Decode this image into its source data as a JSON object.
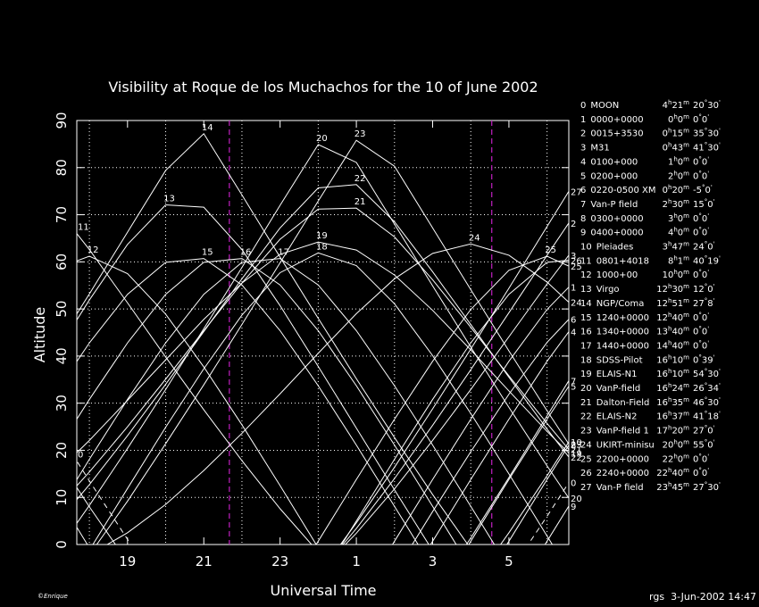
{
  "chart_data": {
    "type": "line",
    "title": "Visibility at Roque de los Muchachos for the 10 of June 2002",
    "x_label": "Universal Time",
    "y_label": "Altitude",
    "credit": "©Enrique",
    "stamp": "rgs  3-Jun-2002 14:47",
    "xlim": [
      17.67,
      30.57
    ],
    "ylim": [
      0,
      90
    ],
    "xticks": [
      19,
      21,
      23,
      {
        "value": 25,
        "label": "1"
      },
      {
        "value": 27,
        "label": "3"
      },
      {
        "value": 29,
        "label": "5"
      }
    ],
    "xgrid": [
      18,
      20,
      22,
      24,
      26,
      28,
      30
    ],
    "yticks": [
      0,
      10,
      20,
      30,
      40,
      50,
      60,
      70,
      80,
      90
    ],
    "grid": true,
    "background": "#000000",
    "line_color": "#ffffff",
    "markers": [
      21.67,
      28.55
    ],
    "marker_color": "#c020c0",
    "x": [
      17,
      18,
      19,
      20,
      21,
      22,
      23,
      24,
      25,
      26,
      27,
      28,
      29,
      30,
      31
    ],
    "series": [
      {
        "id": "0",
        "name": "MOON",
        "ra": [
          "4",
          "h",
          "21",
          "m"
        ],
        "dec": [
          "20",
          "°",
          "30",
          "'"
        ],
        "dashed": true,
        "values": [
          26.3,
          13.5,
          1.1,
          -10.7,
          null,
          null,
          null,
          null,
          null,
          null,
          null,
          null,
          -6.1,
          6.0,
          18.5
        ]
      },
      {
        "id": "1",
        "name": "0000+0000",
        "ra": [
          "0",
          "h",
          "0",
          "m"
        ],
        "dec": [
          "0",
          "°",
          "0",
          "'"
        ],
        "values": [
          null,
          null,
          null,
          null,
          null,
          null,
          null,
          null,
          -12.5,
          0.7,
          13.8,
          26.6,
          38.9,
          49.9,
          58.2
        ]
      },
      {
        "id": "2",
        "name": "0015+3530",
        "ra": [
          "0",
          "h",
          "15",
          "m"
        ],
        "dec": [
          "35",
          "°",
          "30",
          "'"
        ],
        "values": [
          null,
          null,
          null,
          null,
          null,
          null,
          null,
          -6.3,
          3.4,
          14.0,
          25.3,
          37.1,
          49.2,
          61.4,
          73.4
        ]
      },
      {
        "id": "3",
        "name": "M31",
        "ra": [
          "0",
          "h",
          "43",
          "m"
        ],
        "dec": [
          "41",
          "°",
          "30",
          "'"
        ],
        "values": [
          null,
          null,
          null,
          null,
          null,
          null,
          null,
          -5.9,
          2.4,
          11.8,
          22.1,
          32.9,
          44.1,
          55.3,
          66.0
        ]
      },
      {
        "id": "4",
        "name": "0100+000",
        "ra": [
          "1",
          "h",
          "0",
          "m"
        ],
        "dec": [
          "0",
          "°",
          "0",
          "'"
        ],
        "values": [
          null,
          null,
          null,
          null,
          null,
          null,
          null,
          null,
          null,
          -12.5,
          0.7,
          13.8,
          26.6,
          38.9,
          49.9
        ]
      },
      {
        "id": "5",
        "name": "0200+000",
        "ra": [
          "2",
          "h",
          "0",
          "m"
        ],
        "dec": [
          "0",
          "°",
          "0",
          "'"
        ],
        "values": [
          null,
          null,
          null,
          null,
          null,
          null,
          null,
          null,
          null,
          null,
          -12.5,
          0.7,
          13.8,
          26.6,
          38.9
        ]
      },
      {
        "id": "6",
        "name": "0220-0500 XM",
        "ra": [
          "0",
          "h",
          "20",
          "m"
        ],
        "dec": [
          "-5",
          "°",
          "0",
          "'"
        ],
        "values": [
          null,
          null,
          null,
          null,
          null,
          null,
          null,
          null,
          null,
          -6.1,
          7.0,
          19.7,
          31.9,
          42.9,
          51.5
        ]
      },
      {
        "id": "7",
        "name": "Van-P field",
        "ra": [
          "2",
          "h",
          "30",
          "m"
        ],
        "dec": [
          "15",
          "°",
          "0",
          "'"
        ],
        "values": [
          null,
          null,
          null,
          null,
          null,
          null,
          null,
          null,
          null,
          null,
          -10.9,
          1.4,
          14.2,
          27.3,
          40.4
        ]
      },
      {
        "id": "8",
        "name": "0300+0000",
        "ra": [
          "3",
          "h",
          "0",
          "m"
        ],
        "dec": [
          "0",
          "°",
          "0",
          "'"
        ],
        "values": [
          null,
          null,
          null,
          null,
          null,
          null,
          null,
          null,
          null,
          null,
          null,
          -12.5,
          0.7,
          13.8,
          26.6
        ]
      },
      {
        "id": "9",
        "name": "0400+0000",
        "ra": [
          "4",
          "h",
          "0",
          "m"
        ],
        "dec": [
          "0",
          "°",
          "0",
          "'"
        ],
        "values": [
          12.5,
          -0.7,
          null,
          null,
          null,
          null,
          null,
          null,
          null,
          null,
          null,
          null,
          -12.5,
          0.7,
          13.8
        ]
      },
      {
        "id": "10",
        "name": "Pleiades",
        "ra": [
          "3",
          "h",
          "47",
          "m"
        ],
        "dec": [
          "24",
          "°",
          "0",
          "'"
        ],
        "values": [
          20.4,
          8.0,
          -3.7,
          null,
          null,
          null,
          null,
          null,
          null,
          null,
          null,
          -8.9,
          2.5,
          14.6,
          27.2
        ]
      },
      {
        "id": "11",
        "name": "0801+4018",
        "ra": [
          "8",
          "h",
          "1",
          "m"
        ],
        "dec": [
          "40",
          "°",
          "19",
          "'"
        ],
        "values": [
          72.9,
          62.6,
          51.3,
          39.8,
          28.6,
          17.8,
          7.6,
          -1.6,
          null,
          null,
          null,
          null,
          null,
          null,
          null
        ]
      },
      {
        "id": "12",
        "name": "1000+00",
        "ra": [
          "10",
          "h",
          "0",
          "m"
        ],
        "dec": [
          "0",
          "°",
          "0",
          "'"
        ],
        "values": [
          58.2,
          61.2,
          57.5,
          48.9,
          37.7,
          25.4,
          12.5,
          -0.7,
          null,
          null,
          null,
          null,
          null,
          null,
          null
        ]
      },
      {
        "id": "13",
        "name": "Virgo",
        "ra": [
          "12",
          "h",
          "30",
          "m"
        ],
        "dec": [
          "12",
          "°",
          "0",
          "'"
        ],
        "values": [
          39.1,
          51.9,
          63.7,
          72.1,
          71.6,
          62.6,
          50.7,
          37.8,
          24.7,
          11.6,
          -1.3,
          null,
          null,
          null,
          null
        ]
      },
      {
        "id": "14",
        "name": "NGP/Coma",
        "ra": [
          "12",
          "h",
          "51",
          "m"
        ],
        "dec": [
          "27",
          "°",
          "8",
          "'"
        ],
        "values": [
          40.3,
          53.2,
          66.3,
          79.4,
          87.2,
          74.2,
          61.0,
          48.0,
          35.2,
          22.7,
          10.6,
          -0.9,
          null,
          null,
          null
        ]
      },
      {
        "id": "15",
        "name": "1240+0000",
        "ra": [
          "12",
          "h",
          "40",
          "m"
        ],
        "dec": [
          "0",
          "°",
          "0",
          "'"
        ],
        "values": [
          30.8,
          42.8,
          53.1,
          59.9,
          60.7,
          55.1,
          45.4,
          33.7,
          21.1,
          8.1,
          -5.0,
          null,
          null,
          null,
          null
        ]
      },
      {
        "id": "16",
        "name": "1340+0000",
        "ra": [
          "13",
          "h",
          "40",
          "m"
        ],
        "dec": [
          "0",
          "°",
          "0",
          "'"
        ],
        "values": [
          18.1,
          30.8,
          42.8,
          53.1,
          59.9,
          60.7,
          55.1,
          45.4,
          33.7,
          21.1,
          8.1,
          -5.0,
          null,
          null,
          null
        ]
      },
      {
        "id": "17",
        "name": "1440+0000",
        "ra": [
          "14",
          "h",
          "40",
          "m"
        ],
        "dec": [
          "0",
          "°",
          "0",
          "'"
        ],
        "values": [
          5.0,
          18.1,
          30.8,
          42.8,
          53.1,
          59.9,
          60.7,
          55.1,
          45.4,
          33.7,
          21.1,
          8.1,
          -5.0,
          null,
          null
        ]
      },
      {
        "id": "18",
        "name": "SDSS-Pilot",
        "ra": [
          "16",
          "h",
          "10",
          "m"
        ],
        "dec": [
          "0",
          "°",
          "39",
          "'"
        ],
        "values": [
          -14.3,
          -1.2,
          11.9,
          24.9,
          37.3,
          48.7,
          57.7,
          61.9,
          59.2,
          51.1,
          40.1,
          27.8,
          15.0,
          1.8,
          -11.3
        ]
      },
      {
        "id": "19",
        "name": "ELAIS-N1",
        "ra": [
          "16",
          "h",
          "10",
          "m"
        ],
        "dec": [
          "54",
          "°",
          "30",
          "'"
        ],
        "values": [
          14.2,
          22.1,
          30.6,
          39.2,
          47.8,
          55.5,
          61.6,
          64.2,
          62.5,
          57.2,
          49.7,
          41.3,
          32.6,
          24.0,
          16.0
        ]
      },
      {
        "id": "20",
        "name": "VanP-field",
        "ra": [
          "16",
          "h",
          "24",
          "m"
        ],
        "dec": [
          "26",
          "°",
          "34",
          "'"
        ],
        "values": [
          -3.2,
          8.3,
          20.4,
          32.9,
          45.8,
          58.8,
          72.0,
          84.9,
          81.1,
          68.0,
          54.9,
          41.9,
          29.1,
          16.7,
          4.7
        ]
      },
      {
        "id": "21",
        "name": "Dalton-Field",
        "ra": [
          "16",
          "h",
          "35",
          "m"
        ],
        "dec": [
          "46",
          "°",
          "30",
          "'"
        ],
        "values": [
          6.5,
          15.4,
          25.0,
          35.1,
          45.4,
          55.5,
          64.8,
          71.2,
          71.4,
          65.3,
          56.2,
          46.1,
          35.8,
          25.7,
          16.0
        ]
      },
      {
        "id": "22",
        "name": "ELAIS-N2",
        "ra": [
          "16",
          "h",
          "37",
          "m"
        ],
        "dec": [
          "41",
          "°",
          "18",
          "'"
        ],
        "values": [
          3.1,
          12.7,
          23.1,
          34.0,
          45.2,
          56.4,
          67.2,
          75.7,
          76.4,
          68.5,
          57.9,
          46.7,
          35.5,
          24.5,
          14.1
        ]
      },
      {
        "id": "23",
        "name": "VanP-field 1",
        "ra": [
          "17",
          "h",
          "20",
          "m"
        ],
        "dec": [
          "27",
          "°",
          "0",
          "'"
        ],
        "values": [
          -12.8,
          -2.2,
          9.2,
          21.4,
          33.9,
          46.7,
          59.8,
          72.9,
          85.8,
          80.3,
          67.2,
          54.1,
          41.1,
          28.4,
          16.0
        ]
      },
      {
        "id": "24",
        "name": "UKIRT-minisu",
        "ra": [
          "20",
          "h",
          "0",
          "m"
        ],
        "dec": [
          "55",
          "°",
          "0",
          "'"
        ],
        "values": [
          -5.2,
          -2.2,
          2.5,
          8.5,
          15.7,
          23.6,
          32.0,
          40.6,
          49.0,
          56.4,
          61.8,
          63.8,
          61.4,
          55.7,
          48.2
        ]
      },
      {
        "id": "25",
        "name": "2200+0000",
        "ra": [
          "22",
          "h",
          "0",
          "m"
        ],
        "dec": [
          "0",
          "°",
          "0",
          "'"
        ],
        "values": [
          null,
          null,
          null,
          null,
          null,
          null,
          -12.5,
          0.7,
          13.8,
          26.6,
          38.9,
          49.9,
          58.2,
          61.2,
          57.5
        ]
      },
      {
        "id": "26",
        "name": "2240+0000",
        "ra": [
          "22",
          "h",
          "40",
          "m"
        ],
        "dec": [
          "0",
          "°",
          "0",
          "'"
        ],
        "values": [
          null,
          null,
          null,
          null,
          null,
          null,
          null,
          -8.1,
          5.0,
          18.1,
          30.8,
          42.8,
          53.1,
          59.9,
          60.7
        ]
      },
      {
        "id": "27",
        "name": "Van-P field",
        "ra": [
          "23",
          "h",
          "45",
          "m"
        ],
        "dec": [
          "27",
          "°",
          "30",
          "'"
        ],
        "values": [
          null,
          null,
          null,
          null,
          null,
          null,
          null,
          -6.5,
          4.6,
          16.4,
          28.8,
          41.5,
          54.4,
          67.5,
          80.6
        ]
      }
    ]
  }
}
